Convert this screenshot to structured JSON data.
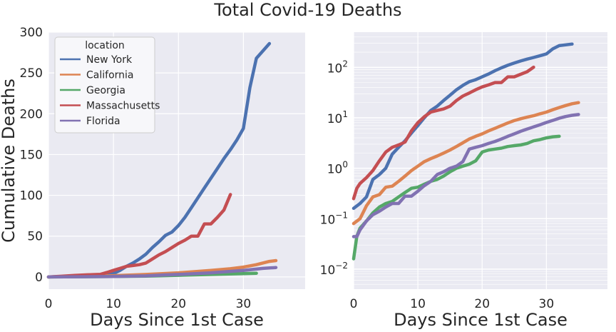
{
  "figure": {
    "title": "Total Covid-19 Deaths"
  },
  "chart_data": [
    {
      "type": "line",
      "panel": "left",
      "xlabel": "Days Since 1st Case",
      "ylabel": "Cumulative Deaths",
      "xlim": [
        0,
        39.5
      ],
      "ylim": [
        -15,
        300
      ],
      "xticks": [
        0,
        10,
        20,
        30
      ],
      "yticks": [
        0,
        50,
        100,
        150,
        200,
        250,
        300
      ],
      "grid": true,
      "legend": {
        "title": "location",
        "placement": "top-left"
      },
      "series": [
        {
          "name": "New York",
          "color": "#4c72b0",
          "x": [
            0,
            2,
            4,
            6,
            8,
            10,
            11,
            12,
            13,
            14,
            15,
            16,
            17,
            18,
            19,
            20,
            21,
            22,
            23,
            24,
            25,
            26,
            27,
            28,
            29,
            30,
            31,
            32,
            33,
            34
          ],
          "y": [
            0,
            0.5,
            1,
            1.5,
            2,
            4,
            8,
            13,
            17,
            22,
            28,
            36,
            43,
            51,
            55,
            63,
            73,
            85,
            97,
            109,
            121,
            133,
            145,
            156,
            168,
            182,
            232,
            268,
            277,
            286
          ]
        },
        {
          "name": "California",
          "color": "#dd8452",
          "x": [
            0,
            5,
            10,
            15,
            20,
            25,
            28,
            30,
            32,
            34,
            35
          ],
          "y": [
            0,
            0.5,
            1.5,
            3,
            5,
            8,
            10,
            12,
            15,
            19,
            20
          ]
        },
        {
          "name": "Georgia",
          "color": "#55a868",
          "x": [
            0,
            5,
            10,
            15,
            20,
            25,
            30,
            32
          ],
          "y": [
            0,
            0.2,
            0.5,
            1,
            2,
            3,
            4,
            4.5
          ]
        },
        {
          "name": "Massachusetts",
          "color": "#c44e52",
          "x": [
            0,
            2,
            4,
            6,
            8,
            9,
            10,
            11,
            12,
            13,
            14,
            15,
            16,
            17,
            18,
            19,
            20,
            21,
            22,
            23,
            24,
            25,
            26,
            27,
            28
          ],
          "y": [
            0,
            0.8,
            1.8,
            2.6,
            3.2,
            5.5,
            8,
            10.5,
            13,
            14,
            15,
            17,
            22,
            27,
            31,
            36,
            41,
            45,
            50,
            50,
            65,
            65,
            73,
            82,
            101
          ]
        },
        {
          "name": "Florida",
          "color": "#8172b2",
          "x": [
            0,
            5,
            10,
            15,
            18,
            20,
            25,
            30,
            33,
            35
          ],
          "y": [
            0,
            0.2,
            0.5,
            1.3,
            2.5,
            3,
            5,
            8,
            10.5,
            11.5
          ]
        }
      ]
    },
    {
      "type": "line",
      "panel": "right",
      "xlabel": "Days Since 1st Case",
      "ylabel": "",
      "yscale": "log",
      "xlim": [
        0,
        39.5
      ],
      "ylim": [
        0.004,
        500
      ],
      "xticks": [
        0,
        10,
        20,
        30
      ],
      "yticks": [
        {
          "value": 0.01,
          "base": "10",
          "exp": "−2"
        },
        {
          "value": 0.1,
          "base": "10",
          "exp": "−1"
        },
        {
          "value": 1,
          "base": "10",
          "exp": "0"
        },
        {
          "value": 10,
          "base": "10",
          "exp": "1"
        },
        {
          "value": 100,
          "base": "10",
          "exp": "2"
        }
      ],
      "grid": true,
      "series": [
        {
          "name": "New York",
          "color": "#4c72b0",
          "x": [
            0,
            1,
            2,
            3,
            4,
            5,
            6,
            7,
            8,
            9,
            10,
            11,
            12,
            13,
            14,
            15,
            16,
            17,
            18,
            19,
            20,
            21,
            22,
            23,
            24,
            25,
            26,
            27,
            28,
            29,
            30,
            31,
            32,
            33,
            34
          ],
          "y": [
            0.16,
            0.2,
            0.27,
            0.6,
            0.75,
            1,
            1.9,
            2.6,
            3.5,
            5,
            7,
            10,
            14,
            17,
            22,
            28,
            36,
            44,
            52,
            57,
            65,
            74,
            86,
            98,
            110,
            122,
            134,
            146,
            157,
            170,
            185,
            233,
            270,
            280,
            290
          ]
        },
        {
          "name": "California",
          "color": "#dd8452",
          "x": [
            0,
            1,
            2,
            3,
            4,
            5,
            6,
            7,
            8,
            9,
            10,
            11,
            12,
            13,
            14,
            15,
            16,
            17,
            18,
            19,
            20,
            21,
            22,
            23,
            24,
            25,
            26,
            27,
            28,
            29,
            30,
            31,
            32,
            33,
            34,
            35
          ],
          "y": [
            0.08,
            0.1,
            0.18,
            0.27,
            0.3,
            0.42,
            0.44,
            0.55,
            0.7,
            0.9,
            1.1,
            1.35,
            1.55,
            1.75,
            2,
            2.3,
            2.7,
            3.2,
            3.8,
            4.3,
            4.8,
            5.5,
            6.2,
            7,
            7.9,
            8.8,
            9.6,
            10.3,
            11,
            12,
            13,
            14.5,
            16,
            17.5,
            19,
            20
          ]
        },
        {
          "name": "Georgia",
          "color": "#55a868",
          "x": [
            0,
            0.5,
            1,
            2,
            3,
            4,
            5,
            6,
            7,
            8,
            9,
            10,
            11,
            12,
            13,
            14,
            15,
            16,
            17,
            18,
            19,
            20,
            21,
            22,
            23,
            24,
            25,
            26,
            27,
            28,
            29,
            30,
            31,
            32
          ],
          "y": [
            0.016,
            0.045,
            0.065,
            0.09,
            0.13,
            0.17,
            0.2,
            0.22,
            0.27,
            0.33,
            0.4,
            0.42,
            0.48,
            0.55,
            0.6,
            0.7,
            0.85,
            1,
            1.1,
            1.2,
            1.4,
            2.1,
            2.3,
            2.4,
            2.5,
            2.7,
            2.8,
            2.9,
            3.1,
            3.5,
            3.7,
            4,
            4.2,
            4.3
          ]
        },
        {
          "name": "Massachusetts",
          "color": "#c44e52",
          "x": [
            0,
            0.5,
            1,
            2,
            3,
            4,
            5,
            6,
            7,
            8,
            9,
            10,
            11,
            12,
            13,
            14,
            15,
            16,
            17,
            18,
            19,
            20,
            21,
            22,
            23,
            24,
            25,
            26,
            27,
            28
          ],
          "y": [
            0.25,
            0.4,
            0.5,
            0.65,
            0.9,
            1.4,
            2.1,
            2.6,
            2.9,
            3.3,
            5.5,
            8,
            10.5,
            13,
            14,
            15,
            17,
            22,
            27,
            31,
            36,
            41,
            45,
            50,
            50,
            65,
            65,
            73,
            82,
            101
          ]
        },
        {
          "name": "Florida",
          "color": "#8172b2",
          "x": [
            0,
            0.5,
            1,
            2,
            3,
            4,
            5,
            6,
            7,
            8,
            9,
            10,
            11,
            12,
            13,
            14,
            15,
            16,
            17,
            18,
            19,
            20,
            21,
            22,
            23,
            24,
            25,
            26,
            27,
            28,
            29,
            30,
            31,
            32,
            33,
            34,
            35
          ],
          "y": [
            0.044,
            0.044,
            0.06,
            0.09,
            0.12,
            0.14,
            0.17,
            0.2,
            0.2,
            0.28,
            0.28,
            0.35,
            0.45,
            0.55,
            0.75,
            0.85,
            1,
            1.1,
            1.35,
            2.4,
            2.6,
            2.8,
            3.1,
            3.4,
            3.8,
            4.3,
            4.8,
            5.4,
            6,
            6.6,
            7.3,
            8.1,
            8.9,
            9.8,
            10.6,
            11.2,
            11.6
          ]
        }
      ]
    }
  ]
}
